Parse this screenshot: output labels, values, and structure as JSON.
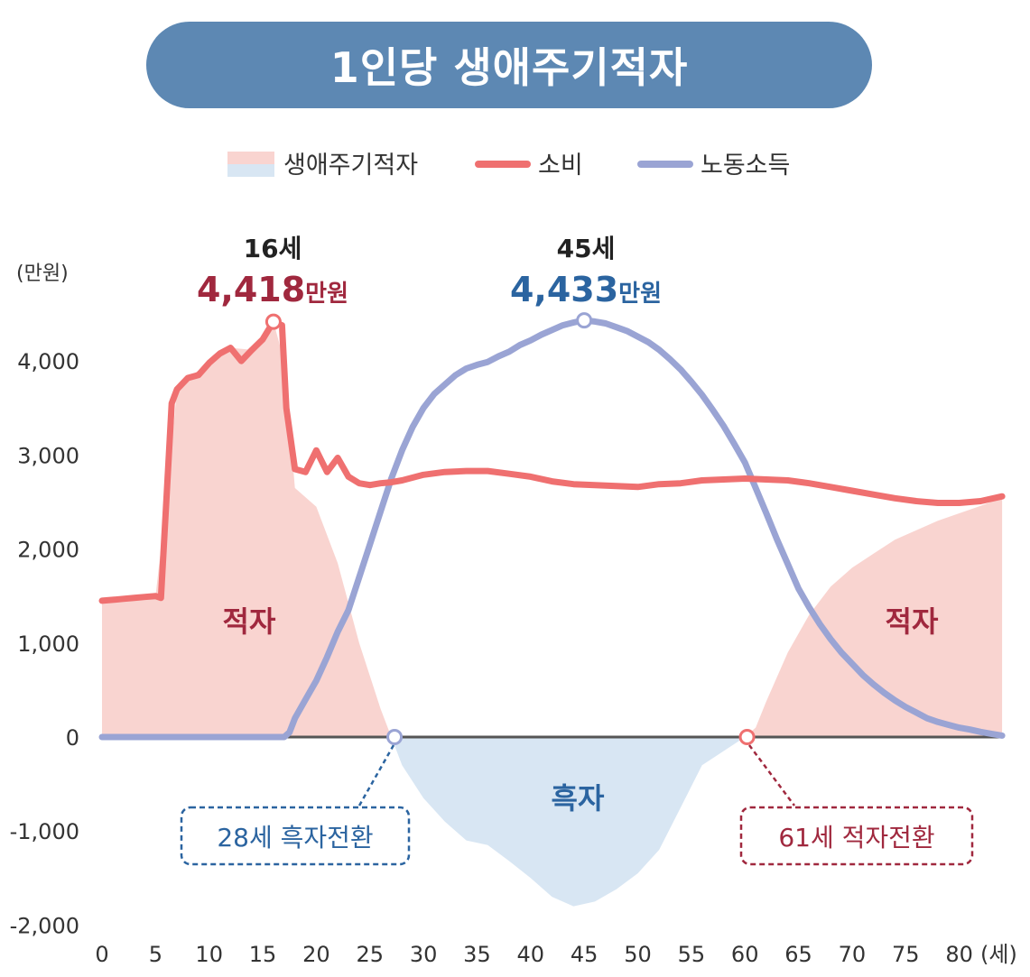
{
  "header": {
    "title": "1인당 생애주기적자"
  },
  "legend": [
    {
      "label": "생애주기적자",
      "kind": "area",
      "color_surplus": "#f9d4d0",
      "color_deficit": "#d8e6f3"
    },
    {
      "label": "소비",
      "kind": "line",
      "color": "#ef7070"
    },
    {
      "label": "노동소득",
      "kind": "line",
      "color": "#9aa4d4"
    }
  ],
  "y_unit": "(만원)",
  "x_unit": "(세)",
  "peaks": {
    "consumption": {
      "age_label": "16세",
      "value_label": "4,418",
      "value_suffix": "만원"
    },
    "income": {
      "age_label": "45세",
      "value_label": "4,433",
      "value_suffix": "만원"
    }
  },
  "regions": {
    "deficit_left": "적자",
    "surplus": "흑자",
    "deficit_right": "적자"
  },
  "callouts": {
    "to_surplus": "28세 흑자전환",
    "to_deficit": "61세 적자전환"
  },
  "colors": {
    "consumption": "#ef7070",
    "income": "#9aa4d4",
    "deficit_fill": "#f9d4d0",
    "surplus_fill": "#d8e6f3",
    "deficit_text": "#a0283e",
    "surplus_text": "#2b64a0",
    "title_bg": "#5d88b3",
    "axis": "#555555"
  },
  "chart_data": {
    "type": "line",
    "title": "1인당 생애주기적자",
    "xlabel": "(세)",
    "ylabel": "(만원)",
    "xlim": [
      0,
      84
    ],
    "ylim": [
      -2000,
      4500
    ],
    "x_ticks": [
      0,
      5,
      10,
      15,
      20,
      25,
      30,
      35,
      40,
      45,
      50,
      55,
      60,
      65,
      70,
      75,
      80
    ],
    "y_ticks": [
      -2000,
      -1000,
      0,
      1000,
      2000,
      3000,
      4000
    ],
    "y_tick_labels": [
      "-2,000",
      "-1,000",
      "0",
      "1,000",
      "2,000",
      "3,000",
      "4,000"
    ],
    "series": [
      {
        "name": "소비",
        "x": [
          0,
          1,
          2,
          3,
          4,
          5,
          5.5,
          6,
          6.5,
          7,
          8,
          9,
          10,
          11,
          12,
          13,
          14,
          15,
          16,
          16.8,
          17.2,
          18,
          19,
          20,
          21,
          22,
          23,
          24,
          25,
          26,
          27,
          28,
          30,
          32,
          34,
          36,
          38,
          40,
          42,
          44,
          46,
          48,
          50,
          52,
          54,
          56,
          58,
          60,
          62,
          64,
          66,
          68,
          70,
          72,
          74,
          76,
          78,
          80,
          82,
          84
        ],
        "values": [
          1450,
          1460,
          1470,
          1480,
          1490,
          1500,
          1480,
          2500,
          3550,
          3700,
          3820,
          3850,
          3980,
          4080,
          4140,
          4000,
          4120,
          4230,
          4418,
          4380,
          3500,
          2850,
          2820,
          3050,
          2820,
          2970,
          2770,
          2700,
          2680,
          2700,
          2710,
          2730,
          2790,
          2820,
          2830,
          2830,
          2800,
          2770,
          2720,
          2690,
          2680,
          2670,
          2660,
          2690,
          2700,
          2730,
          2740,
          2750,
          2740,
          2730,
          2700,
          2660,
          2620,
          2580,
          2540,
          2510,
          2490,
          2490,
          2510,
          2560
        ]
      },
      {
        "name": "노동소득",
        "x": [
          0,
          5,
          10,
          15,
          16,
          16.5,
          17,
          17.5,
          18,
          19,
          20,
          21,
          22,
          23,
          24,
          25,
          26,
          27,
          28,
          29,
          30,
          31,
          32,
          33,
          34,
          35,
          36,
          37,
          38,
          39,
          40,
          41,
          42,
          43,
          44,
          45,
          46,
          47,
          48,
          49,
          50,
          51,
          52,
          53,
          54,
          55,
          56,
          57,
          58,
          59,
          60,
          61,
          62,
          63,
          64,
          65,
          66,
          67,
          68,
          69,
          70,
          71,
          72,
          73,
          74,
          75,
          76,
          77,
          78,
          79,
          80,
          81,
          82,
          83,
          84
        ],
        "values": [
          0,
          0,
          0,
          0,
          0,
          0,
          0,
          50,
          200,
          400,
          600,
          850,
          1120,
          1350,
          1700,
          2050,
          2400,
          2750,
          3050,
          3300,
          3500,
          3650,
          3750,
          3850,
          3920,
          3960,
          3990,
          4050,
          4100,
          4170,
          4220,
          4280,
          4330,
          4380,
          4410,
          4433,
          4420,
          4400,
          4360,
          4320,
          4260,
          4200,
          4120,
          4020,
          3910,
          3780,
          3640,
          3480,
          3310,
          3120,
          2920,
          2650,
          2380,
          2100,
          1840,
          1580,
          1380,
          1200,
          1040,
          900,
          780,
          660,
          560,
          470,
          390,
          320,
          260,
          200,
          160,
          130,
          100,
          80,
          55,
          35,
          15
        ]
      },
      {
        "name": "생애주기적자",
        "x": [
          0,
          5,
          6,
          7,
          8,
          10,
          12,
          14,
          16,
          17,
          18,
          20,
          22,
          24,
          26,
          27,
          28,
          30,
          32,
          34,
          36,
          38,
          40,
          42,
          44,
          46,
          48,
          50,
          52,
          54,
          56,
          58,
          60,
          61,
          62,
          64,
          66,
          68,
          70,
          72,
          74,
          76,
          78,
          80,
          82,
          84
        ],
        "values": [
          1450,
          1500,
          2500,
          3700,
          3820,
          3980,
          4140,
          4120,
          4418,
          4000,
          2650,
          2450,
          1850,
          1000,
          300,
          0,
          -300,
          -650,
          -900,
          -1100,
          -1150,
          -1320,
          -1500,
          -1700,
          -1800,
          -1750,
          -1620,
          -1450,
          -1200,
          -750,
          -300,
          -150,
          0,
          100,
          380,
          900,
          1300,
          1600,
          1800,
          1950,
          2100,
          2200,
          2300,
          2380,
          2460,
          2545
        ]
      }
    ],
    "points": [
      {
        "label": "16세 4,418만원",
        "x": 16,
        "y": 4418
      },
      {
        "label": "45세 4,433만원",
        "x": 45,
        "y": 4433
      },
      {
        "label": "28세 흑자전환",
        "x": 27.3,
        "y": 0
      },
      {
        "label": "61세 적자전환",
        "x": 60.2,
        "y": 0
      }
    ]
  }
}
